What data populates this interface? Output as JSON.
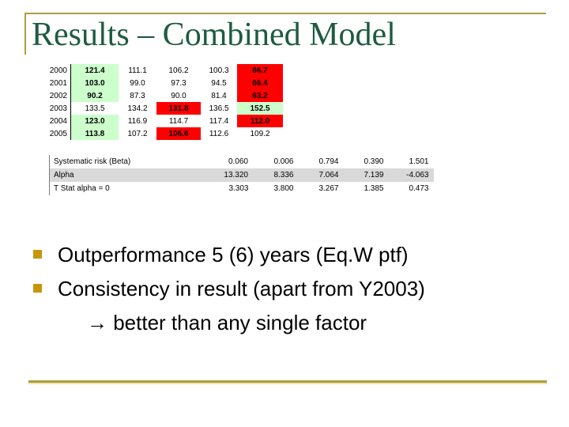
{
  "slide": {
    "title": "Results – Combined Model"
  },
  "colors": {
    "title_green": "#1e5b41",
    "rule_gold": "#ae9d3e",
    "rule_gold_light": "#ede7b2",
    "bullet_gold": "#c8960c",
    "cell_green": "#ccffcc",
    "cell_red": "#ff0000",
    "row_gray": "#d9d9d9"
  },
  "performance_table": {
    "rows": [
      {
        "year": "2000",
        "values": [
          "121.4",
          "111.1",
          "106.2",
          "100.3",
          "66.7"
        ],
        "highlights": [
          "green",
          "none",
          "none",
          "none",
          "red"
        ]
      },
      {
        "year": "2001",
        "values": [
          "103.0",
          "99.0",
          "97.3",
          "94.5",
          "66.4"
        ],
        "highlights": [
          "green",
          "none",
          "none",
          "none",
          "red"
        ]
      },
      {
        "year": "2002",
        "values": [
          "90.2",
          "87.3",
          "90.0",
          "81.4",
          "63.2"
        ],
        "highlights": [
          "green",
          "none",
          "none",
          "none",
          "red"
        ]
      },
      {
        "year": "2003",
        "values": [
          "133.5",
          "134.2",
          "131.8",
          "136.5",
          "152.5"
        ],
        "highlights": [
          "none",
          "none",
          "red",
          "none",
          "green"
        ]
      },
      {
        "year": "2004",
        "values": [
          "123.0",
          "116.9",
          "114.7",
          "117.4",
          "112.0"
        ],
        "highlights": [
          "green",
          "none",
          "none",
          "none",
          "red"
        ]
      },
      {
        "year": "2005",
        "values": [
          "113.8",
          "107.2",
          "106.6",
          "112.6",
          "109.2"
        ],
        "highlights": [
          "green",
          "none",
          "red",
          "none",
          "none"
        ]
      }
    ]
  },
  "stats_table": {
    "rows": [
      {
        "label": "Systematic risk (Beta)",
        "values": [
          "0.060",
          "0.006",
          "0.794",
          "0.390",
          "1.501"
        ],
        "shaded": false
      },
      {
        "label": "Alpha",
        "values": [
          "13.320",
          "8.336",
          "7.064",
          "7.139",
          "-4.063"
        ],
        "shaded": true
      },
      {
        "label": "T Stat  alpha = 0",
        "values": [
          "3.303",
          "3.800",
          "3.267",
          "1.385",
          "0.473"
        ],
        "shaded": false
      }
    ]
  },
  "bullets": {
    "items": [
      "Outperformance 5 (6) years (Eq.W ptf)",
      "Consistency in result (apart from Y2003)"
    ],
    "continuation": "→ better than any single factor"
  }
}
